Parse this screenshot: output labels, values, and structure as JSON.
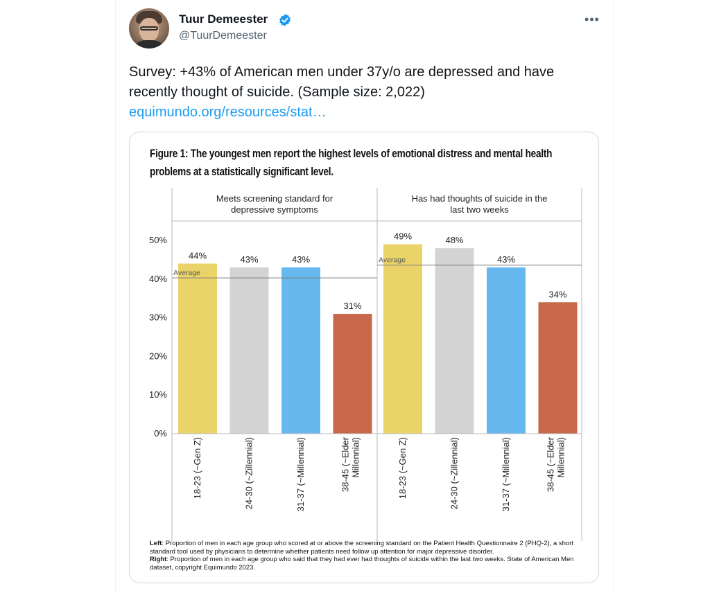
{
  "author": {
    "name": "Tuur Demeester",
    "handle": "@TuurDemeester",
    "verified_icon": "verified-badge-icon",
    "accent": "#1d9bf0"
  },
  "menu": {
    "more_label": "•••"
  },
  "tweet": {
    "text": "Survey: +43% of American men under 37y/o are depressed and have recently thought of suicide. (Sample size: 2,022) ",
    "link_text": "equimundo.org/resources/stat…"
  },
  "figure": {
    "title": "Figure 1: The youngest men report the highest levels of emotional distress and mental health problems at a statistically significant level.",
    "caption_left_label": "Left",
    "caption_left": ": Proportion of men in each age group who scored at or above the screening standard on the Patient Health Questionnaire 2 (PHQ-2), a short standard tool used by physicians to determine whether patients need follow up attention for major depressive disorder.",
    "caption_right_label": "Right",
    "caption_right": ": Proportion of men in each age group who said that they had ever had thoughts of suicide within the last two weeks. State of American Men dataset, copyright Equimundo 2023."
  },
  "chart_data": {
    "type": "bar",
    "ylim": [
      0,
      50
    ],
    "yticks": [
      0,
      10,
      20,
      30,
      40,
      50
    ],
    "ytick_labels": [
      "0%",
      "10%",
      "20%",
      "30%",
      "40%",
      "50%"
    ],
    "categories": [
      "18-23 (~Gen Z)",
      "24-30 (~Zillennial)",
      "31-37 (~Millennial)",
      "38-45 (~Elder Millennial)"
    ],
    "colors": [
      "#ead46a",
      "#d3d3d3",
      "#67b8ee",
      "#c8684a"
    ],
    "average_label": "Average",
    "panels": [
      {
        "title": "Meets screening standard for depressive symptoms",
        "values": [
          44,
          43,
          43,
          31
        ],
        "value_labels": [
          "44%",
          "43%",
          "43%",
          "31%"
        ],
        "average": 40.3
      },
      {
        "title": "Has had thoughts of suicide in the last two weeks",
        "values": [
          49,
          48,
          43,
          34
        ],
        "value_labels": [
          "49%",
          "48%",
          "43%",
          "34%"
        ],
        "average": 43.6
      }
    ]
  }
}
